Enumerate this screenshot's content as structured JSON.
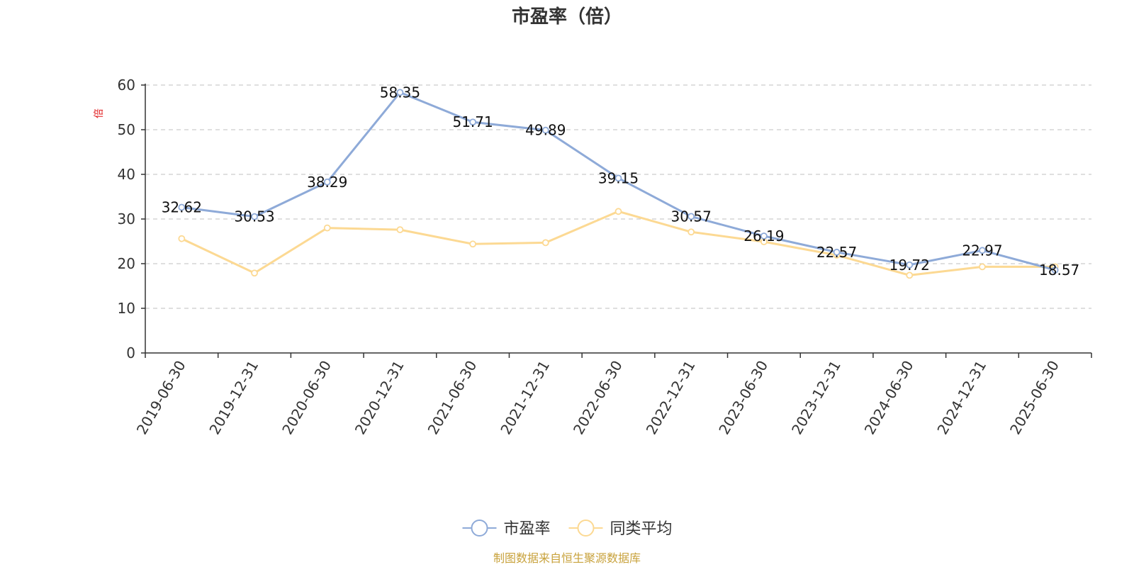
{
  "chart_data": {
    "type": "line",
    "title": "市盈率（倍）",
    "ylabel": "倍",
    "xlabel": "",
    "ylim": [
      0,
      60
    ],
    "yticks": [
      0,
      10,
      20,
      30,
      40,
      50,
      60
    ],
    "grid": true,
    "legend_position": "bottom",
    "categories": [
      "2019-06-30",
      "2019-12-31",
      "2020-06-30",
      "2020-12-31",
      "2021-06-30",
      "2021-12-31",
      "2022-06-30",
      "2022-12-31",
      "2023-06-30",
      "2023-12-31",
      "2024-06-30",
      "2024-12-31",
      "2025-06-30"
    ],
    "series": [
      {
        "name": "市盈率",
        "color": "#8eaad8",
        "values": [
          32.62,
          30.53,
          38.29,
          58.35,
          51.71,
          49.89,
          39.15,
          30.57,
          26.19,
          22.57,
          19.72,
          22.97,
          18.57
        ],
        "labels_shown": true
      },
      {
        "name": "同类平均",
        "color": "#fcd993",
        "values": [
          25.6,
          17.9,
          28.0,
          27.6,
          24.4,
          24.7,
          31.7,
          27.1,
          24.9,
          21.9,
          17.4,
          19.3,
          19.3
        ],
        "labels_shown": false
      }
    ]
  },
  "footer": {
    "source": "制图数据来自恒生聚源数据库"
  }
}
